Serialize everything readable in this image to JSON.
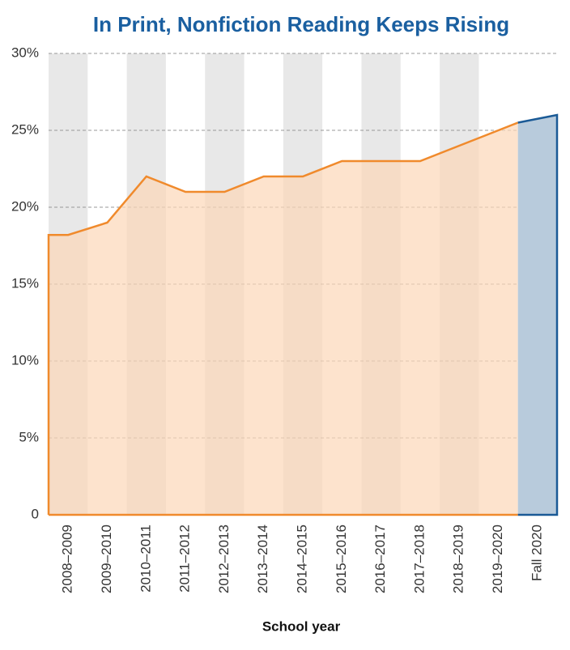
{
  "chart_data": {
    "type": "area",
    "title": "In Print, Nonfiction Reading Keeps Rising",
    "x_label": "School year",
    "categories": [
      "2008–2009",
      "2009–2010",
      "2010–2011",
      "2011–2012",
      "2012–2013",
      "2013–2014",
      "2014–2015",
      "2015–2016",
      "2016–2017",
      "2017–2018",
      "2018–2019",
      "2019–2020",
      "Fall 2020"
    ],
    "values": [
      18.2,
      19,
      22,
      21,
      21,
      22,
      22,
      23,
      23,
      23,
      24,
      25,
      26
    ],
    "color": "#f08a2c",
    "fill": "#fcd7b8",
    "highlight_color": "#1a5a96",
    "highlight_fill": "#b8cbdc",
    "ylim": [
      0,
      30
    ],
    "yticks": [
      0,
      {
        "value": 5,
        "label": "5%"
      },
      {
        "value": 10,
        "label": "10%"
      },
      {
        "value": 15,
        "label": "15%"
      },
      {
        "value": 20,
        "label": "20%"
      },
      {
        "value": 25,
        "label": "25%"
      },
      {
        "value": 30,
        "label": "30%"
      }
    ],
    "grid": true
  }
}
